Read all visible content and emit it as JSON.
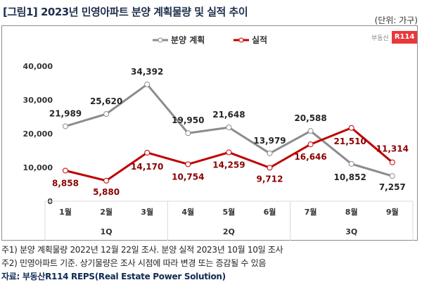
{
  "title": "[그림1] 2023년 민영아파트 분양 계획물량 및 실적 추이",
  "unit": "(단위: 가구)",
  "logo": {
    "text": "부동산",
    "badge": "R114"
  },
  "notes": [
    "주1) 분양 계획물량 2022년 12월 22일 조사. 분양 실적 2023년 10월 10일 조사",
    "주2) 민영아파트 기준. 상기물량은 조사 시점에 따라 변경 또는 증감될 수 있음"
  ],
  "source": "자료: 부동산R114 REPS(Real Estate Power Solution)",
  "colors": {
    "plan": "#8c8c8c",
    "actual": "#c00000",
    "plan_label": "#262626",
    "actual_label": "#8b0000"
  },
  "chart_data": {
    "type": "line",
    "categories": [
      "1월",
      "2월",
      "3월",
      "4월",
      "5월",
      "6월",
      "7월",
      "8월",
      "9월"
    ],
    "groups": [
      {
        "label": "1Q",
        "span": 3
      },
      {
        "label": "2Q",
        "span": 3
      },
      {
        "label": "3Q",
        "span": 3
      }
    ],
    "series": [
      {
        "name": "분양 계획",
        "values": [
          21989,
          25620,
          34392,
          19950,
          21648,
          13979,
          20588,
          10852,
          7257
        ],
        "labels": [
          "21,989",
          "25,620",
          "34,392",
          "19,950",
          "21,648",
          "13,979",
          "20,588",
          "10,852",
          "7,257"
        ]
      },
      {
        "name": "실적",
        "values": [
          8858,
          5880,
          14170,
          10754,
          14259,
          9712,
          16646,
          21510,
          11314
        ],
        "labels": [
          "8,858",
          "5,880",
          "14,170",
          "10,754",
          "14,259",
          "9,712",
          "16,646",
          "21,510",
          "11,314"
        ]
      }
    ],
    "yticks": [
      0,
      10000,
      20000,
      30000,
      40000
    ],
    "ytick_labels": [
      "0",
      "10,000",
      "20,000",
      "30,000",
      "40,000"
    ],
    "ylim": [
      0,
      40000
    ],
    "legend": "top-center",
    "grid": false
  }
}
